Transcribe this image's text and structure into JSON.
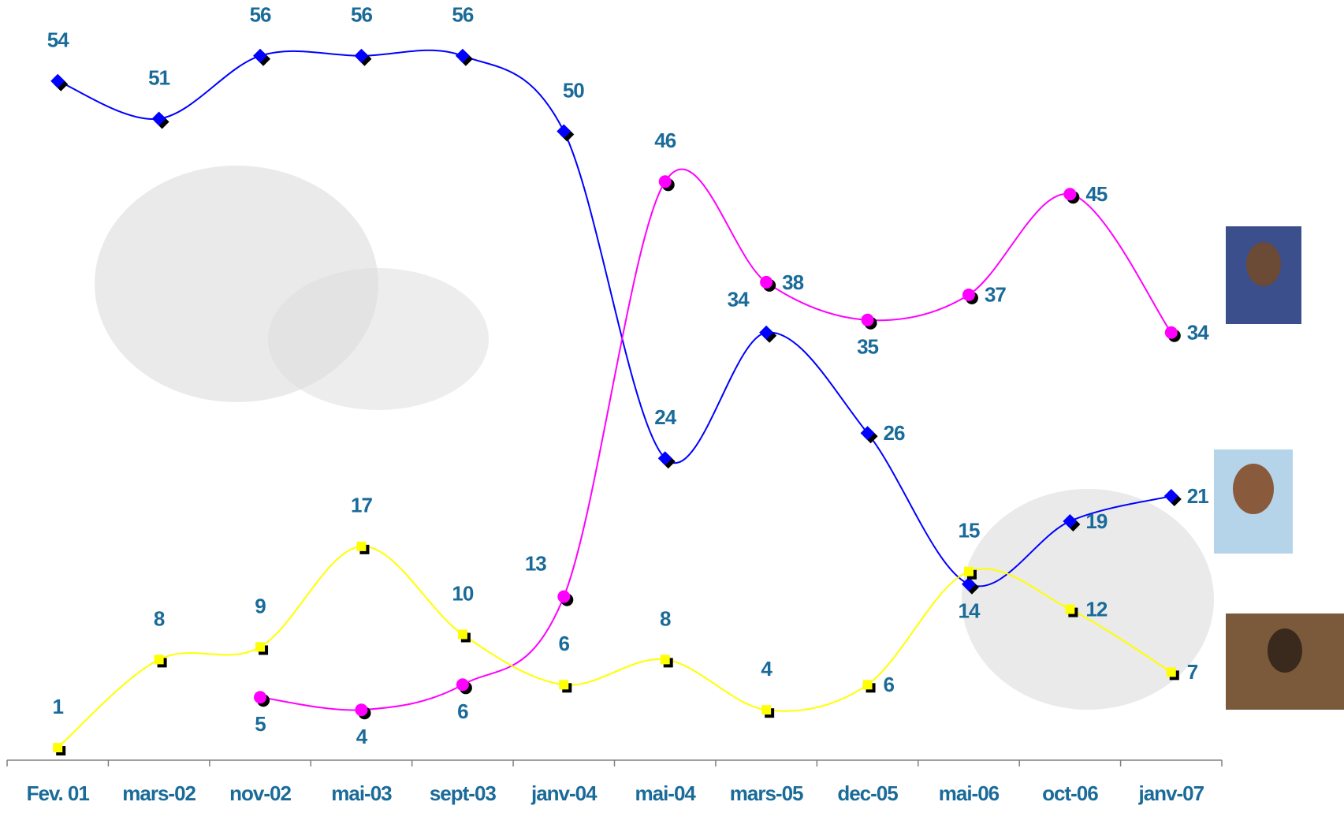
{
  "chart_data": {
    "type": "line",
    "categories": [
      "Fev. 01",
      "mars-02",
      "nov-02",
      "mai-03",
      "sept-03",
      "janv-04",
      "mai-04",
      "mars-05",
      "dec-05",
      "mai-06",
      "oct-06",
      "janv-07"
    ],
    "series": [
      {
        "color": "#0000ff",
        "marker": "diamond",
        "values": [
          54,
          51,
          56,
          56,
          56,
          50,
          24,
          34,
          26,
          14,
          19,
          21
        ]
      },
      {
        "color": "#ff00ff",
        "marker": "circle",
        "values": [
          null,
          null,
          5,
          4,
          6,
          13,
          46,
          38,
          35,
          37,
          45,
          34
        ]
      },
      {
        "color": "#ffff00",
        "marker": "square",
        "values": [
          1,
          8,
          9,
          17,
          10,
          6,
          8,
          4,
          6,
          15,
          12,
          7
        ]
      }
    ],
    "ylim": [
      0,
      60
    ]
  }
}
